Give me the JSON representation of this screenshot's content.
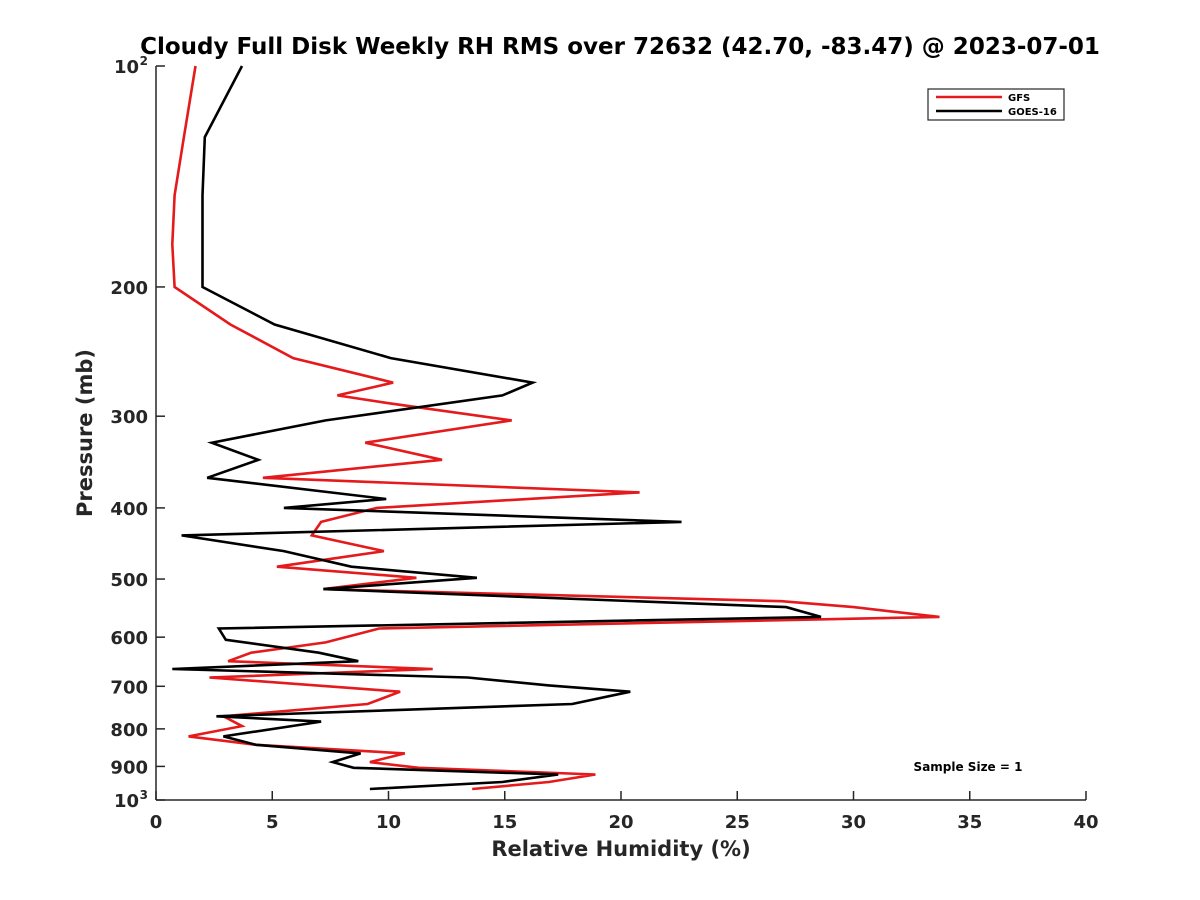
{
  "chart_data": {
    "type": "line",
    "title": "Cloudy Full Disk Weekly RH RMS over 72632 (42.70, -83.47) @ 2023-07-01",
    "xlabel": "Relative Humidity (%)",
    "ylabel": "Pressure (mb)",
    "xlim": [
      0,
      40
    ],
    "ylim": [
      100,
      1000
    ],
    "y_scale": "log",
    "y_reversed": true,
    "x_ticks": [
      "0",
      "5",
      "10",
      "15",
      "20",
      "25",
      "30",
      "35",
      "40"
    ],
    "y_ticks": [
      {
        "value": 100,
        "label": "10",
        "sup": "2"
      },
      {
        "value": 200,
        "label": "200",
        "sup": ""
      },
      {
        "value": 300,
        "label": "300",
        "sup": ""
      },
      {
        "value": 400,
        "label": "400",
        "sup": ""
      },
      {
        "value": 500,
        "label": "500",
        "sup": ""
      },
      {
        "value": 600,
        "label": "600",
        "sup": ""
      },
      {
        "value": 700,
        "label": "700",
        "sup": ""
      },
      {
        "value": 800,
        "label": "800",
        "sup": ""
      },
      {
        "value": 900,
        "label": "900",
        "sup": ""
      },
      {
        "value": 1000,
        "label": "10",
        "sup": "3"
      }
    ],
    "grid": false,
    "legend_position": "top-right",
    "annotation": "Sample Size = 1",
    "series": [
      {
        "name": "GFS",
        "color": "#e41a1c",
        "points": [
          [
            1.7,
            100
          ],
          [
            1.2,
            125
          ],
          [
            0.8,
            150
          ],
          [
            0.7,
            175
          ],
          [
            0.8,
            200
          ],
          [
            3.2,
            225
          ],
          [
            5.9,
            250
          ],
          [
            10.2,
            270
          ],
          [
            7.8,
            281
          ],
          [
            10.0,
            288
          ],
          [
            15.3,
            304
          ],
          [
            9.0,
            326
          ],
          [
            12.3,
            344
          ],
          [
            4.6,
            364
          ],
          [
            20.8,
            381
          ],
          [
            9.5,
            400
          ],
          [
            7.1,
            418
          ],
          [
            6.7,
            436
          ],
          [
            9.8,
            458
          ],
          [
            5.2,
            481
          ],
          [
            11.2,
            498
          ],
          [
            7.2,
            516
          ],
          [
            26.9,
            536
          ],
          [
            30.0,
            546
          ],
          [
            33.7,
            563
          ],
          [
            9.6,
            584
          ],
          [
            7.3,
            610
          ],
          [
            4.1,
            630
          ],
          [
            3.1,
            647
          ],
          [
            11.9,
            663
          ],
          [
            2.3,
            681
          ],
          [
            10.5,
            712
          ],
          [
            9.1,
            740
          ],
          [
            2.9,
            769
          ],
          [
            3.7,
            793
          ],
          [
            1.4,
            819
          ],
          [
            4.3,
            841
          ],
          [
            10.7,
            864
          ],
          [
            9.2,
            888
          ],
          [
            11.3,
            904
          ],
          [
            18.9,
            923
          ],
          [
            16.9,
            945
          ],
          [
            13.6,
            966
          ]
        ]
      },
      {
        "name": "GOES-16",
        "color": "#000000",
        "points": [
          [
            3.7,
            100
          ],
          [
            2.1,
            125
          ],
          [
            2.0,
            150
          ],
          [
            2.0,
            175
          ],
          [
            2.0,
            200
          ],
          [
            5.1,
            225
          ],
          [
            10.1,
            250
          ],
          [
            16.2,
            270
          ],
          [
            14.9,
            281
          ],
          [
            7.3,
            304
          ],
          [
            2.4,
            326
          ],
          [
            4.4,
            344
          ],
          [
            2.2,
            364
          ],
          [
            9.9,
            389
          ],
          [
            5.5,
            400
          ],
          [
            22.6,
            418
          ],
          [
            1.1,
            436
          ],
          [
            5.5,
            458
          ],
          [
            8.4,
            481
          ],
          [
            13.8,
            498
          ],
          [
            7.2,
            516
          ],
          [
            27.1,
            546
          ],
          [
            28.6,
            563
          ],
          [
            2.7,
            584
          ],
          [
            3.0,
            605
          ],
          [
            7.0,
            630
          ],
          [
            8.7,
            647
          ],
          [
            0.7,
            663
          ],
          [
            13.4,
            681
          ],
          [
            16.9,
            698
          ],
          [
            20.4,
            712
          ],
          [
            17.9,
            740
          ],
          [
            2.6,
            769
          ],
          [
            7.1,
            782
          ],
          [
            2.9,
            819
          ],
          [
            4.3,
            841
          ],
          [
            8.8,
            864
          ],
          [
            7.6,
            888
          ],
          [
            8.5,
            904
          ],
          [
            17.3,
            923
          ],
          [
            14.9,
            945
          ],
          [
            9.2,
            966
          ]
        ]
      }
    ]
  }
}
